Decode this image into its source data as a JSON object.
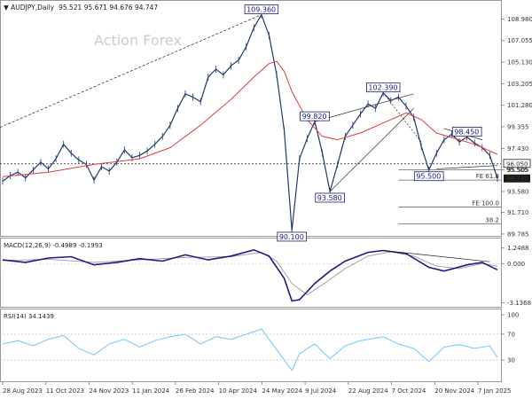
{
  "chart_data": {
    "type": "line",
    "symbol_title": "AUDJPY,Daily",
    "ohlc": "95.521 95.671 94.676 94.747",
    "watermark": "Action Forex",
    "price_axis": {
      "ylim": [
        89.7,
        110.2
      ],
      "ticks": [
        "108.980",
        "107.055",
        "105.130",
        "103.205",
        "101.280",
        "99.355",
        "97.430",
        "95.505",
        "93.580",
        "91.710",
        "89.785"
      ]
    },
    "x_ticks": [
      "28 Aug 2023",
      "11 Oct 2023",
      "24 Nov 2023",
      "11 Jan 2024",
      "26 Feb 2024",
      "10 Apr 2024",
      "24 May 2024",
      "9 Jul 2024",
      "22 Aug 2024",
      "7 Oct 2024",
      "20 Nov 2024",
      "7 Jan 2025"
    ],
    "price_series": [
      {
        "x": 0,
        "y": 94.5
      },
      {
        "x": 1,
        "y": 95.0
      },
      {
        "x": 2,
        "y": 95.3
      },
      {
        "x": 3,
        "y": 94.8
      },
      {
        "x": 4,
        "y": 95.5
      },
      {
        "x": 5,
        "y": 96.2
      },
      {
        "x": 6,
        "y": 95.6
      },
      {
        "x": 7,
        "y": 96.5
      },
      {
        "x": 8,
        "y": 97.8
      },
      {
        "x": 9,
        "y": 97.0
      },
      {
        "x": 10,
        "y": 96.4
      },
      {
        "x": 11,
        "y": 96.0
      },
      {
        "x": 12,
        "y": 94.6
      },
      {
        "x": 13,
        "y": 95.8
      },
      {
        "x": 14,
        "y": 95.4
      },
      {
        "x": 15,
        "y": 96.2
      },
      {
        "x": 16,
        "y": 97.3
      },
      {
        "x": 17,
        "y": 96.6
      },
      {
        "x": 18,
        "y": 96.8
      },
      {
        "x": 19,
        "y": 97.2
      },
      {
        "x": 20,
        "y": 97.8
      },
      {
        "x": 21,
        "y": 98.5
      },
      {
        "x": 22,
        "y": 99.5
      },
      {
        "x": 23,
        "y": 101.0
      },
      {
        "x": 24,
        "y": 102.3
      },
      {
        "x": 25,
        "y": 102.0
      },
      {
        "x": 26,
        "y": 101.6
      },
      {
        "x": 27,
        "y": 103.8
      },
      {
        "x": 28,
        "y": 104.5
      },
      {
        "x": 29,
        "y": 104.0
      },
      {
        "x": 30,
        "y": 104.8
      },
      {
        "x": 31,
        "y": 105.3
      },
      {
        "x": 32,
        "y": 106.5
      },
      {
        "x": 33,
        "y": 108.2
      },
      {
        "x": 34,
        "y": 109.36
      },
      {
        "x": 35,
        "y": 107.5
      },
      {
        "x": 36,
        "y": 104.0
      },
      {
        "x": 37,
        "y": 99.0
      },
      {
        "x": 38,
        "y": 90.1
      },
      {
        "x": 39,
        "y": 96.5
      },
      {
        "x": 40,
        "y": 98.3
      },
      {
        "x": 41,
        "y": 99.82
      },
      {
        "x": 42,
        "y": 97.0
      },
      {
        "x": 43,
        "y": 93.58
      },
      {
        "x": 44,
        "y": 96.0
      },
      {
        "x": 45,
        "y": 98.5
      },
      {
        "x": 46,
        "y": 99.5
      },
      {
        "x": 47,
        "y": 100.5
      },
      {
        "x": 48,
        "y": 101.4
      },
      {
        "x": 49,
        "y": 101.0
      },
      {
        "x": 50,
        "y": 102.39
      },
      {
        "x": 51,
        "y": 101.7
      },
      {
        "x": 52,
        "y": 102.0
      },
      {
        "x": 53,
        "y": 101.2
      },
      {
        "x": 54,
        "y": 100.2
      },
      {
        "x": 55,
        "y": 97.6
      },
      {
        "x": 56,
        "y": 95.5
      },
      {
        "x": 57,
        "y": 97.0
      },
      {
        "x": 58,
        "y": 98.2
      },
      {
        "x": 59,
        "y": 98.7
      },
      {
        "x": 60,
        "y": 98.0
      },
      {
        "x": 61,
        "y": 98.45
      },
      {
        "x": 62,
        "y": 97.9
      },
      {
        "x": 63,
        "y": 97.5
      },
      {
        "x": 64,
        "y": 96.8
      },
      {
        "x": 65,
        "y": 94.747
      }
    ],
    "ma_series": [
      {
        "x": 0,
        "y": 94.9
      },
      {
        "x": 6,
        "y": 95.3
      },
      {
        "x": 12,
        "y": 96.0
      },
      {
        "x": 18,
        "y": 96.5
      },
      {
        "x": 22,
        "y": 97.5
      },
      {
        "x": 26,
        "y": 99.5
      },
      {
        "x": 30,
        "y": 101.8
      },
      {
        "x": 33,
        "y": 103.8
      },
      {
        "x": 35,
        "y": 105.0
      },
      {
        "x": 36,
        "y": 105.2
      },
      {
        "x": 37,
        "y": 104.3
      },
      {
        "x": 38,
        "y": 102.5
      },
      {
        "x": 40,
        "y": 100.0
      },
      {
        "x": 42,
        "y": 98.5
      },
      {
        "x": 44,
        "y": 98.2
      },
      {
        "x": 47,
        "y": 98.8
      },
      {
        "x": 50,
        "y": 99.7
      },
      {
        "x": 53,
        "y": 100.6
      },
      {
        "x": 55,
        "y": 100.0
      },
      {
        "x": 57,
        "y": 98.8
      },
      {
        "x": 60,
        "y": 98.2
      },
      {
        "x": 62,
        "y": 97.8
      },
      {
        "x": 65,
        "y": 96.9
      }
    ],
    "price_labels": [
      {
        "text": "109.360",
        "x": 34,
        "y": 109.36
      },
      {
        "text": "99.820",
        "x": 41,
        "y": 99.82
      },
      {
        "text": "102.390",
        "x": 50,
        "y": 102.39
      },
      {
        "text": "98.450",
        "x": 61,
        "y": 98.45
      },
      {
        "text": "93.580",
        "x": 43,
        "y": 93.58
      },
      {
        "text": "95.500",
        "x": 56,
        "y": 95.5
      },
      {
        "text": "90.100",
        "x": 38,
        "y": 90.1
      }
    ],
    "horizontal_levels": [
      {
        "label": "96.050",
        "y": 96.05,
        "style": "dotted"
      },
      {
        "label": "95.505",
        "y": 95.505,
        "style": "solid"
      },
      {
        "label": "FE 61.8",
        "y": 94.6,
        "style": "solid"
      },
      {
        "label": "FE 100.0",
        "y": 92.2,
        "style": "solid"
      },
      {
        "label": "38.2",
        "y": 90.7,
        "style": "solid"
      }
    ],
    "last_price_label": "94.747",
    "macd": {
      "title": "MACD(12,26,9) -0.4989 -0.1993",
      "ticks": [
        "1.2488",
        "0.000",
        "-3.1368"
      ],
      "ylim": [
        -3.4,
        1.8
      ],
      "macd_series": [
        {
          "x": 0,
          "y": 0.3
        },
        {
          "x": 3,
          "y": 0.1
        },
        {
          "x": 6,
          "y": 0.45
        },
        {
          "x": 9,
          "y": 0.55
        },
        {
          "x": 12,
          "y": -0.1
        },
        {
          "x": 15,
          "y": 0.1
        },
        {
          "x": 18,
          "y": 0.4
        },
        {
          "x": 21,
          "y": 0.2
        },
        {
          "x": 24,
          "y": 0.7
        },
        {
          "x": 27,
          "y": 0.3
        },
        {
          "x": 30,
          "y": 0.6
        },
        {
          "x": 33,
          "y": 1.1
        },
        {
          "x": 35,
          "y": 0.6
        },
        {
          "x": 37,
          "y": -1.2
        },
        {
          "x": 38,
          "y": -3.0
        },
        {
          "x": 39,
          "y": -2.9
        },
        {
          "x": 41,
          "y": -1.6
        },
        {
          "x": 43,
          "y": -0.6
        },
        {
          "x": 45,
          "y": 0.2
        },
        {
          "x": 48,
          "y": 0.9
        },
        {
          "x": 50,
          "y": 1.05
        },
        {
          "x": 53,
          "y": 0.8
        },
        {
          "x": 56,
          "y": -0.3
        },
        {
          "x": 58,
          "y": -0.6
        },
        {
          "x": 61,
          "y": -0.1
        },
        {
          "x": 63,
          "y": 0.1
        },
        {
          "x": 65,
          "y": -0.5
        }
      ],
      "signal_series": [
        {
          "x": 0,
          "y": 0.25
        },
        {
          "x": 6,
          "y": 0.35
        },
        {
          "x": 12,
          "y": 0.1
        },
        {
          "x": 18,
          "y": 0.3
        },
        {
          "x": 24,
          "y": 0.5
        },
        {
          "x": 30,
          "y": 0.55
        },
        {
          "x": 34,
          "y": 0.9
        },
        {
          "x": 36,
          "y": 0.2
        },
        {
          "x": 38,
          "y": -1.6
        },
        {
          "x": 40,
          "y": -2.5
        },
        {
          "x": 42,
          "y": -1.7
        },
        {
          "x": 45,
          "y": -0.4
        },
        {
          "x": 48,
          "y": 0.6
        },
        {
          "x": 51,
          "y": 0.95
        },
        {
          "x": 54,
          "y": 0.6
        },
        {
          "x": 57,
          "y": -0.2
        },
        {
          "x": 60,
          "y": -0.4
        },
        {
          "x": 63,
          "y": 0.0
        },
        {
          "x": 65,
          "y": -0.2
        }
      ]
    },
    "rsi": {
      "title": "RSI(14) 34.1439",
      "ticks": [
        "100",
        "70",
        "30",
        "0"
      ],
      "ylim": [
        0,
        100
      ],
      "series": [
        {
          "x": 0,
          "y": 55
        },
        {
          "x": 2,
          "y": 60
        },
        {
          "x": 4,
          "y": 52
        },
        {
          "x": 6,
          "y": 62
        },
        {
          "x": 8,
          "y": 68
        },
        {
          "x": 10,
          "y": 48
        },
        {
          "x": 12,
          "y": 38
        },
        {
          "x": 14,
          "y": 55
        },
        {
          "x": 16,
          "y": 62
        },
        {
          "x": 18,
          "y": 50
        },
        {
          "x": 20,
          "y": 60
        },
        {
          "x": 22,
          "y": 66
        },
        {
          "x": 24,
          "y": 70
        },
        {
          "x": 26,
          "y": 55
        },
        {
          "x": 28,
          "y": 66
        },
        {
          "x": 30,
          "y": 62
        },
        {
          "x": 32,
          "y": 70
        },
        {
          "x": 34,
          "y": 78
        },
        {
          "x": 35,
          "y": 62
        },
        {
          "x": 37,
          "y": 30
        },
        {
          "x": 38,
          "y": 14
        },
        {
          "x": 39,
          "y": 40
        },
        {
          "x": 41,
          "y": 55
        },
        {
          "x": 43,
          "y": 32
        },
        {
          "x": 45,
          "y": 52
        },
        {
          "x": 47,
          "y": 60
        },
        {
          "x": 50,
          "y": 66
        },
        {
          "x": 52,
          "y": 55
        },
        {
          "x": 54,
          "y": 48
        },
        {
          "x": 56,
          "y": 28
        },
        {
          "x": 58,
          "y": 50
        },
        {
          "x": 60,
          "y": 54
        },
        {
          "x": 62,
          "y": 48
        },
        {
          "x": 64,
          "y": 52
        },
        {
          "x": 65,
          "y": 34
        }
      ]
    },
    "colors": {
      "price": "#1f3a6e",
      "ma": "#e23b3b",
      "macd": "#1a1a8a",
      "signal": "#9a9aa0",
      "rsi": "#6ec6ff",
      "label_box": "#1a1a7a"
    }
  }
}
